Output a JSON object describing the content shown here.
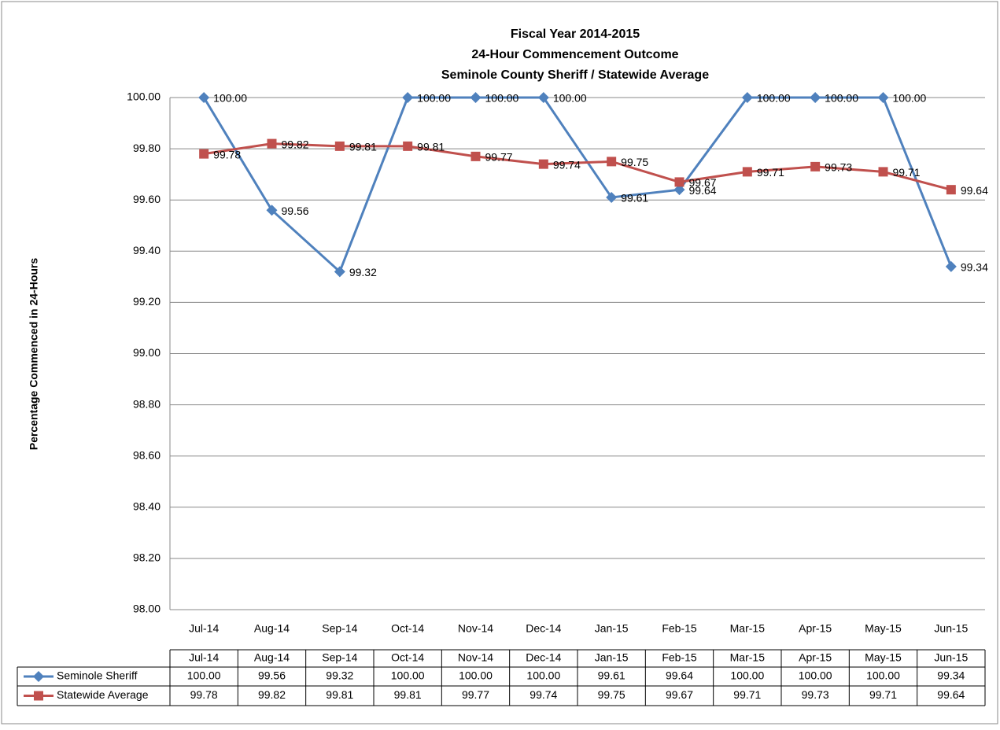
{
  "chart_data": {
    "type": "line",
    "title": [
      "Fiscal Year 2014-2015",
      "24-Hour Commencement Outcome",
      "Seminole County Sheriff / Statewide Average"
    ],
    "y_label": "Percentage Commenced in 24-Hours",
    "categories": [
      "Jul-14",
      "Aug-14",
      "Sep-14",
      "Oct-14",
      "Nov-14",
      "Dec-14",
      "Jan-15",
      "Feb-15",
      "Mar-15",
      "Apr-15",
      "May-15",
      "Jun-15"
    ],
    "series": [
      {
        "name": "Seminole Sheriff",
        "color": "#4f81bd",
        "marker": "diamond",
        "values": [
          100,
          99.56,
          99.32,
          100,
          100,
          100,
          99.61,
          99.64,
          100,
          100,
          100,
          99.34
        ],
        "value_labels": [
          "100.00",
          "99.56",
          "99.32",
          "100.00",
          "100.00",
          "100.00",
          "99.61",
          "99.64",
          "100.00",
          "100.00",
          "100.00",
          "99.34"
        ]
      },
      {
        "name": "Statewide Average",
        "color": "#c0504d",
        "marker": "square",
        "values": [
          99.78,
          99.82,
          99.81,
          99.81,
          99.77,
          99.74,
          99.75,
          99.67,
          99.71,
          99.73,
          99.71,
          99.64
        ],
        "value_labels": [
          "99.78",
          "99.82",
          "99.81",
          "99.81",
          "99.77",
          "99.74",
          "99.75",
          "99.67",
          "99.71",
          "99.73",
          "99.71",
          "99.64"
        ]
      }
    ],
    "ylim": [
      98,
      100
    ],
    "yticks": [
      {
        "value": 98,
        "label": "98.00"
      },
      {
        "value": 98.2,
        "label": "98.20"
      },
      {
        "value": 98.4,
        "label": "98.40"
      },
      {
        "value": 98.6,
        "label": "98.60"
      },
      {
        "value": 98.8,
        "label": "98.80"
      },
      {
        "value": 99,
        "label": "99.00"
      },
      {
        "value": 99.2,
        "label": "99.20"
      },
      {
        "value": 99.4,
        "label": "99.40"
      },
      {
        "value": 99.6,
        "label": "99.60"
      },
      {
        "value": 99.8,
        "label": "99.80"
      },
      {
        "value": 100,
        "label": "100.00"
      }
    ],
    "grid": true,
    "data_table": true
  }
}
